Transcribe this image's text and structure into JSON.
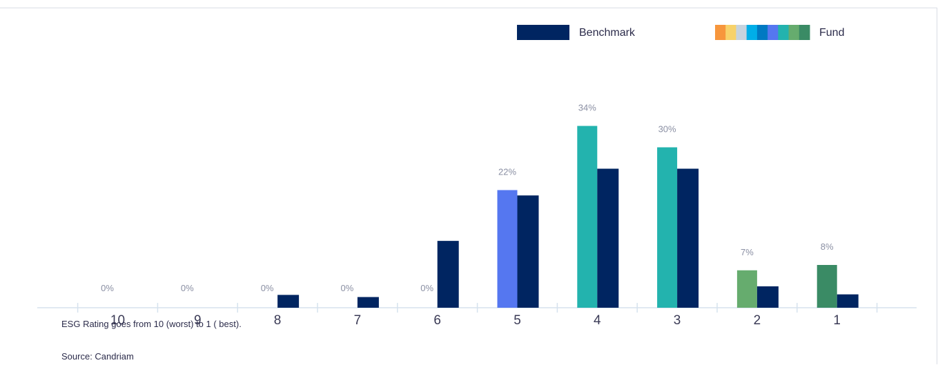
{
  "page": {
    "heading": "",
    "footnote": "ESG Rating goes from 10 (worst) to 1 ( best).",
    "source": "Source: Candriam"
  },
  "chart_data": {
    "type": "bar",
    "title": "",
    "xlabel": "",
    "ylabel": "",
    "categories": [
      "10",
      "9",
      "8",
      "7",
      "6",
      "5",
      "4",
      "3",
      "2",
      "1"
    ],
    "series": [
      {
        "name": "Fund",
        "values": [
          0,
          0,
          0,
          0,
          0,
          22,
          34,
          30,
          7,
          8
        ],
        "data_labels": [
          "0%",
          "0%",
          "0%",
          "0%",
          "0%",
          "22%",
          "34%",
          "30%",
          "7%",
          "8%"
        ],
        "colors": [
          "#f7963c",
          "#f7d26a",
          "#c6d3de",
          "#00aee8",
          "#0079c2",
          "#5577f0",
          "#23b3ae",
          "#23b3ae",
          "#66ac6e",
          "#3a8b65"
        ]
      },
      {
        "name": "Benchmark",
        "values": [
          0,
          0,
          2.4,
          2.0,
          12.5,
          21,
          26,
          26,
          4,
          2.5
        ],
        "color": "#002561"
      }
    ],
    "ylim": [
      0,
      40
    ],
    "grid": false,
    "legend_position": "top-right",
    "legend_fund_swatch_colors": [
      "#f7963c",
      "#f7d26a",
      "#c6d3de",
      "#00aee8",
      "#0079c2",
      "#5577f0",
      "#23b3ae",
      "#66ac6e",
      "#3a8b65"
    ],
    "value_label_color": "#8a8fa3",
    "axis_color": "#d6e2ee"
  }
}
